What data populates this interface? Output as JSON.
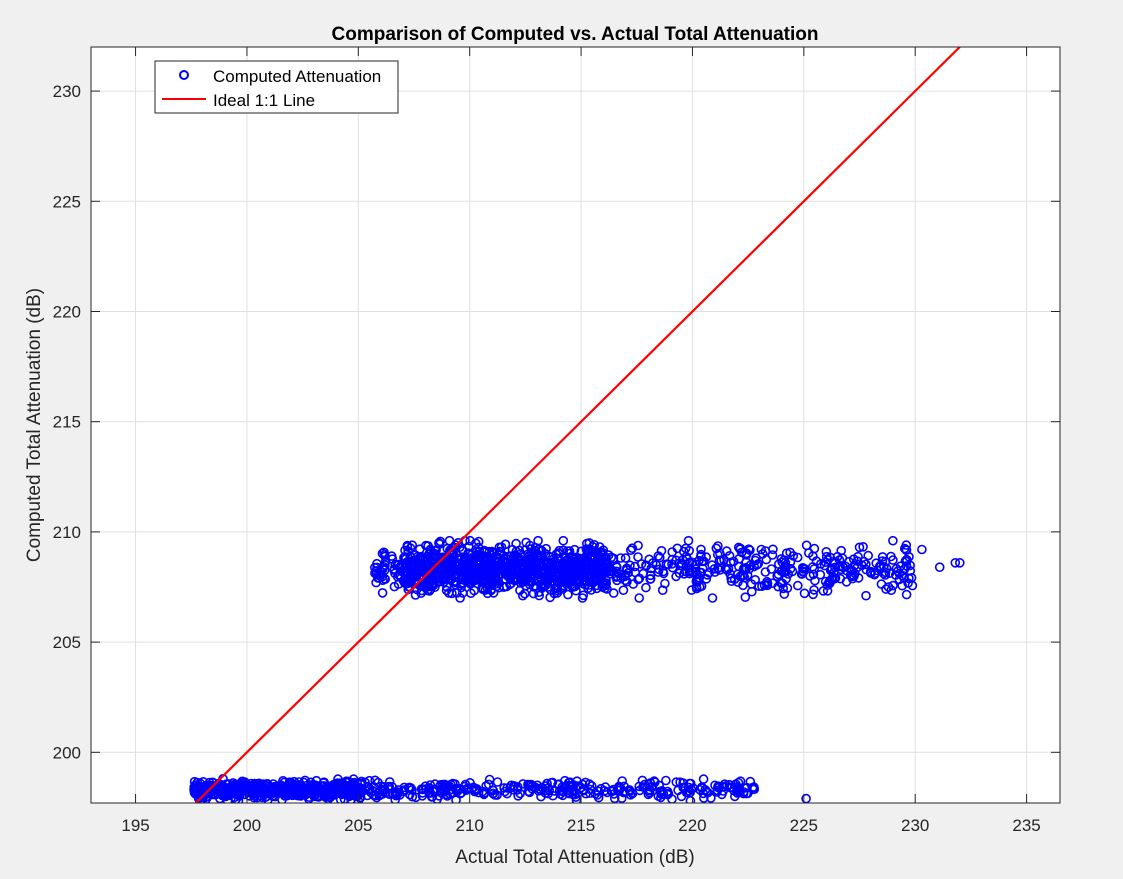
{
  "chart_data": {
    "type": "scatter",
    "title": "Comparison of Computed vs. Actual Total Attenuation",
    "xlabel": "Actual Total Attenuation (dB)",
    "ylabel": "Computed Total Attenuation (dB)",
    "xlim": [
      193,
      236.5
    ],
    "ylim": [
      197.7,
      232
    ],
    "xticks": [
      195,
      200,
      205,
      210,
      215,
      220,
      225,
      230,
      235
    ],
    "yticks": [
      200,
      205,
      210,
      215,
      220,
      225,
      230
    ],
    "grid": true,
    "legend_position": "top-left",
    "series": [
      {
        "name": "Computed Attenuation",
        "kind": "scatter",
        "marker": "circle-open",
        "color": "#0000ff",
        "clusters": [
          {
            "x_range": [
              197.6,
              222.8
            ],
            "y_range": [
              197.8,
              198.8
            ],
            "count": 900
          },
          {
            "x_range": [
              205.7,
              232
            ],
            "y_range": [
              207,
              209.6
            ],
            "count": 1400
          }
        ],
        "points": [
          [
            225.1,
            197.9
          ],
          [
            222.7,
            198.4
          ],
          [
            222.3,
            198.2
          ],
          [
            221.9,
            198.0
          ],
          [
            197.7,
            198.2
          ],
          [
            229.6,
            209.4
          ],
          [
            230.3,
            209.2
          ],
          [
            231.1,
            208.4
          ],
          [
            231.8,
            208.6
          ],
          [
            232.0,
            208.6
          ],
          [
            229.0,
            209.6
          ],
          [
            229.5,
            207.9
          ],
          [
            228.8,
            207.5
          ],
          [
            205.8,
            207.7
          ],
          [
            206.0,
            208.2
          ],
          [
            206.2,
            208.5
          ],
          [
            206.5,
            208.9
          ],
          [
            220.9,
            207.0
          ],
          [
            228.0,
            208.2
          ],
          [
            227.5,
            209.3
          ]
        ]
      },
      {
        "name": "Ideal 1:1 Line",
        "kind": "line",
        "color": "#ff0000",
        "x": [
          197.7,
          232
        ],
        "y": [
          197.7,
          232
        ]
      }
    ]
  }
}
